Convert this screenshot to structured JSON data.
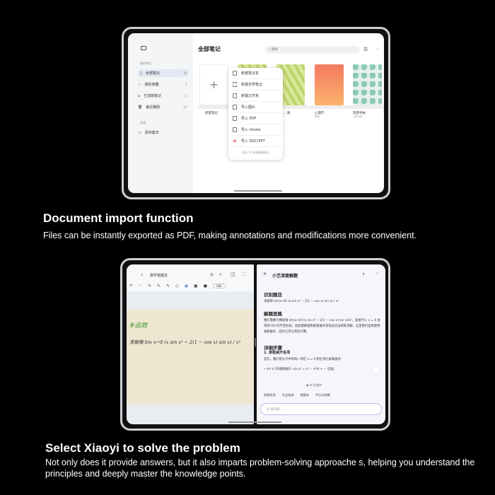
{
  "top_device": {
    "title": "全部笔记",
    "search_placeholder": "搜索",
    "sidebar": {
      "section_my": "我的笔记",
      "items": [
        {
          "label": "全部笔记",
          "count": "18"
        },
        {
          "label": "我的收藏",
          "count": "3"
        },
        {
          "label": "已加锁笔记",
          "count": "2"
        },
        {
          "label": "最近删除",
          "count": "19"
        }
      ],
      "section_res": "资源",
      "res_items": [
        {
          "label": "素材集市"
        }
      ]
    },
    "notebooks": [
      {
        "title": "新建笔记"
      },
      {
        "title": "…课",
        "date": "…00:00"
      },
      {
        "title": "心理学",
        "date": "昨天"
      },
      {
        "title": "旅游手帐",
        "date": "1月22日"
      }
    ],
    "menu": {
      "items": [
        "新建笔记本",
        "新建无界笔记",
        "新建文件夹",
        "导入图片",
        "导入 PDF",
        "导入 hinote",
        "导入 DOC/PPT"
      ],
      "hint": "双击\"+\"快速新建笔记"
    }
  },
  "section1": {
    "heading": "Document import function",
    "text": "Files can be instantly exported as PDF, making annotations and modifications more convenient."
  },
  "bottom_device": {
    "left": {
      "title": "数学错题本",
      "handwriting_tag": "#函数",
      "handwriting_main": "求极限  lim x→0  (x sin x² − 2(1 − cos x) sin x) / x³"
    },
    "right": {
      "title": "小艺深度解题",
      "h1": "识别题目",
      "q": "求极限 lim(x→0) (x sin x² − 2(1 − cos x) sin x) / x³",
      "h2": "解题思路",
      "p2": "我们需要计算极限 lim(x→0) (x sin x² − 2(1 − cos x) sin x)/x³，直接代入 x = 0 会得到 0/0 的不定形式，因此需要使用泰勒展开或洛必达法则来求解。这里我们选择使用泰勒展开，因为它可以简化计算。",
      "h3": "详细步骤",
      "h4": "1. 泰勒展开各项",
      "p4": "首先，我们将分子中的每一项在 x = 0 附近进行泰勒展开:",
      "p5": "• sin x² 的泰勒展开: sin x² = x² − x⁶/6 + ··· 因此:",
      "status": "AI 生成中",
      "chips": [
        "拍题快答",
        "作业批改",
        "错题本",
        "AI互动讲解"
      ],
      "input_placeholder": "发消息..."
    }
  },
  "section2": {
    "heading": "Select Xiaoyi to solve the problem",
    "text": "Not only does it provide answers, but it also imparts problem-solving approache s, helping you understand the principles and deeply master the knowledge points."
  },
  "colors": {
    "accent": "#5b7bd5",
    "paper": "#efe6d2",
    "sidebar_sel": "#e3e8f3",
    "wps_red": "#e0393e"
  }
}
